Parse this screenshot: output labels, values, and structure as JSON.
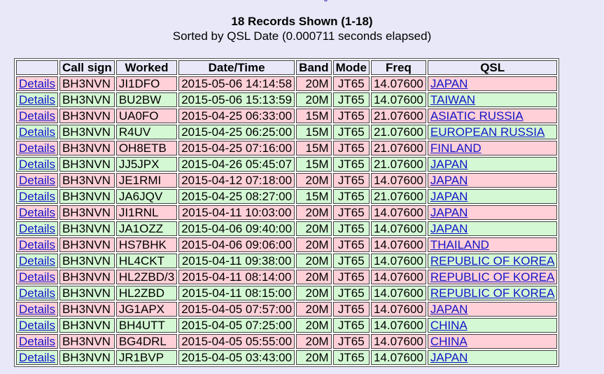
{
  "header": {
    "title": "18 Records Shown (1-18)",
    "subtitle": "Sorted by QSL Date (0.000711 seconds elapsed)"
  },
  "table": {
    "columns": [
      "",
      "Call sign",
      "Worked",
      "Date/Time",
      "Band",
      "Mode",
      "Freq",
      "QSL"
    ],
    "rows": [
      {
        "details": "Details",
        "call": "BH3NVN",
        "worked": "JI1DFO",
        "datetime": "2015-05-06 14:14:58",
        "band": "20M",
        "mode": "JT65",
        "freq": "14.07600",
        "qsl": "JAPAN"
      },
      {
        "details": "Details",
        "call": "BH3NVN",
        "worked": "BU2BW",
        "datetime": "2015-05-06 15:13:59",
        "band": "20M",
        "mode": "JT65",
        "freq": "14.07600",
        "qsl": "TAIWAN"
      },
      {
        "details": "Details",
        "call": "BH3NVN",
        "worked": "UA0FO",
        "datetime": "2015-04-25 06:33:00",
        "band": "15M",
        "mode": "JT65",
        "freq": "21.07600",
        "qsl": "ASIATIC RUSSIA"
      },
      {
        "details": "Details",
        "call": "BH3NVN",
        "worked": "R4UV",
        "datetime": "2015-04-25 06:25:00",
        "band": "15M",
        "mode": "JT65",
        "freq": "21.07600",
        "qsl": "EUROPEAN RUSSIA"
      },
      {
        "details": "Details",
        "call": "BH3NVN",
        "worked": "OH8ETB",
        "datetime": "2015-04-25 07:16:00",
        "band": "15M",
        "mode": "JT65",
        "freq": "21.07600",
        "qsl": "FINLAND"
      },
      {
        "details": "Details",
        "call": "BH3NVN",
        "worked": "JJ5JPX",
        "datetime": "2015-04-26 05:45:07",
        "band": "15M",
        "mode": "JT65",
        "freq": "21.07600",
        "qsl": "JAPAN"
      },
      {
        "details": "Details",
        "call": "BH3NVN",
        "worked": "JE1RMI",
        "datetime": "2015-04-12 07:18:00",
        "band": "20M",
        "mode": "JT65",
        "freq": "14.07600",
        "qsl": "JAPAN"
      },
      {
        "details": "Details",
        "call": "BH3NVN",
        "worked": "JA6JQV",
        "datetime": "2015-04-25 08:27:00",
        "band": "15M",
        "mode": "JT65",
        "freq": "21.07600",
        "qsl": "JAPAN"
      },
      {
        "details": "Details",
        "call": "BH3NVN",
        "worked": "JI1RNL",
        "datetime": "2015-04-11 10:03:00",
        "band": "20M",
        "mode": "JT65",
        "freq": "14.07600",
        "qsl": "JAPAN"
      },
      {
        "details": "Details",
        "call": "BH3NVN",
        "worked": "JA1OZZ",
        "datetime": "2015-04-06 09:40:00",
        "band": "20M",
        "mode": "JT65",
        "freq": "14.07600",
        "qsl": "JAPAN"
      },
      {
        "details": "Details",
        "call": "BH3NVN",
        "worked": "HS7BHK",
        "datetime": "2015-04-06 09:06:00",
        "band": "20M",
        "mode": "JT65",
        "freq": "14.07600",
        "qsl": "THAILAND"
      },
      {
        "details": "Details",
        "call": "BH3NVN",
        "worked": "HL4CKT",
        "datetime": "2015-04-11 09:38:00",
        "band": "20M",
        "mode": "JT65",
        "freq": "14.07600",
        "qsl": "REPUBLIC OF KOREA"
      },
      {
        "details": "Details",
        "call": "BH3NVN",
        "worked": "HL2ZBD/3",
        "datetime": "2015-04-11 08:14:00",
        "band": "20M",
        "mode": "JT65",
        "freq": "14.07600",
        "qsl": "REPUBLIC OF KOREA"
      },
      {
        "details": "Details",
        "call": "BH3NVN",
        "worked": "HL2ZBD",
        "datetime": "2015-04-11 08:15:00",
        "band": "20M",
        "mode": "JT65",
        "freq": "14.07600",
        "qsl": "REPUBLIC OF KOREA"
      },
      {
        "details": "Details",
        "call": "BH3NVN",
        "worked": "JG1APX",
        "datetime": "2015-04-05 07:57:00",
        "band": "20M",
        "mode": "JT65",
        "freq": "14.07600",
        "qsl": "JAPAN"
      },
      {
        "details": "Details",
        "call": "BH3NVN",
        "worked": "BH4UTT",
        "datetime": "2015-04-05 07:25:00",
        "band": "20M",
        "mode": "JT65",
        "freq": "14.07600",
        "qsl": "CHINA"
      },
      {
        "details": "Details",
        "call": "BH3NVN",
        "worked": "BG4DRL",
        "datetime": "2015-04-05 05:55:00",
        "band": "20M",
        "mode": "JT65",
        "freq": "14.07600",
        "qsl": "CHINA"
      },
      {
        "details": "Details",
        "call": "BH3NVN",
        "worked": "JR1BVP",
        "datetime": "2015-04-05 03:43:00",
        "band": "20M",
        "mode": "JT65",
        "freq": "14.07600",
        "qsl": "JAPAN"
      }
    ]
  },
  "colors": {
    "page_background": "#e8e8f8",
    "row_pink": "#ffd0d8",
    "row_green": "#d4f8d4",
    "link": "#1414c8"
  }
}
